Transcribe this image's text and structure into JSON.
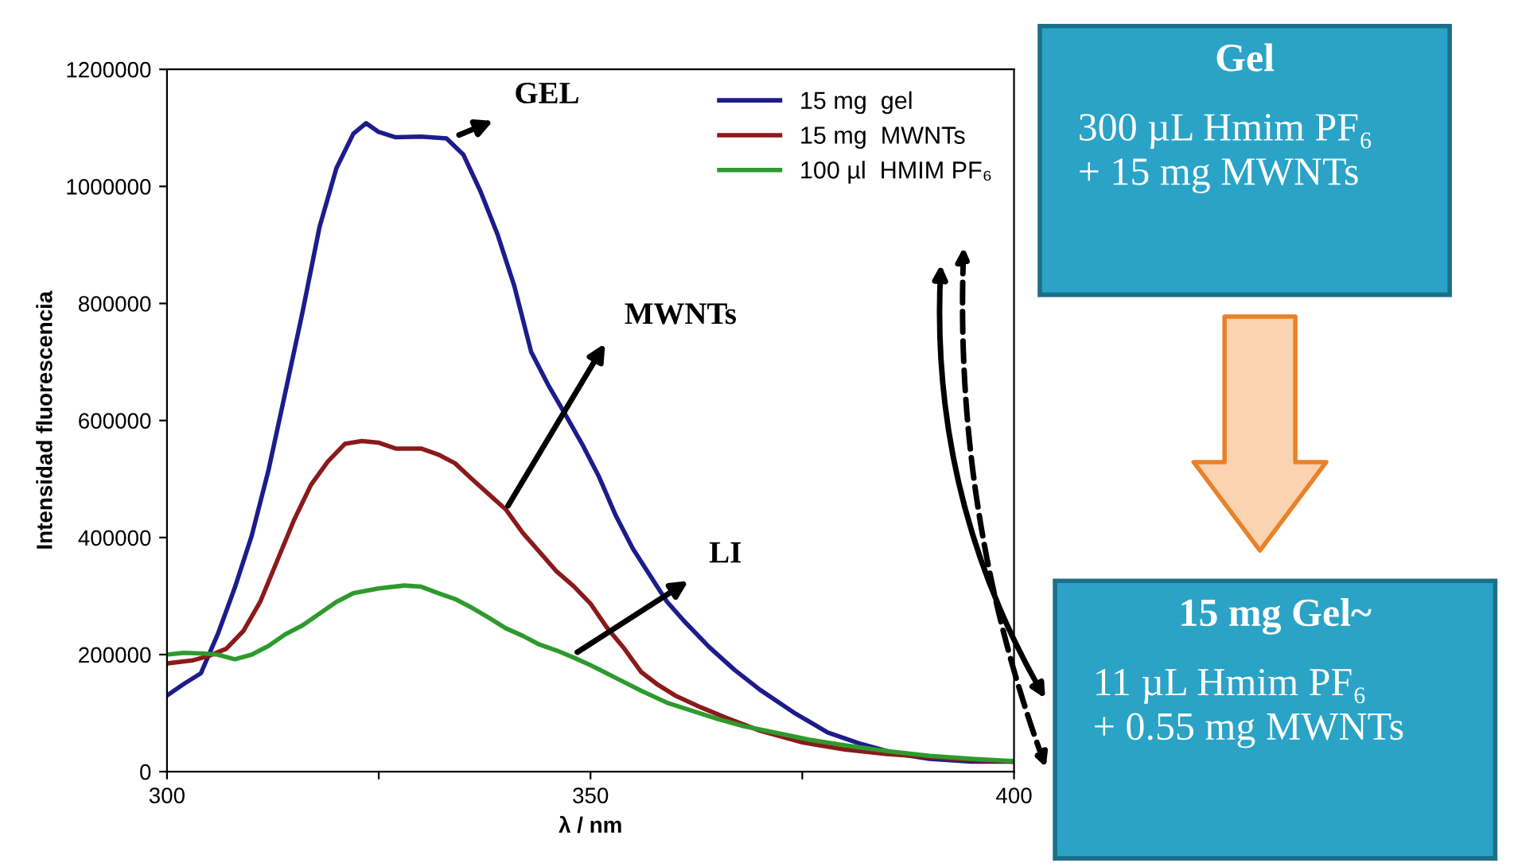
{
  "chart_data": {
    "type": "line",
    "xlabel": "λ / nm",
    "ylabel": "Intensidad fluorescencia",
    "xlim": [
      300,
      400
    ],
    "xticks": [
      300,
      {
        "value": 325,
        "label": null
      },
      350,
      {
        "value": 375,
        "label": null
      },
      400
    ],
    "ylim": [
      0,
      1200000
    ],
    "yticks": [
      0,
      200000,
      400000,
      600000,
      800000,
      1000000,
      1200000
    ],
    "grid": false,
    "legend": "top right",
    "marker": "none",
    "line_style": "solid",
    "series": [
      {
        "name": "15 mg  gel",
        "color": "#1c1c8c",
        "x": [
          300,
          302,
          304,
          306,
          308,
          310,
          312,
          314,
          316,
          318,
          320,
          322,
          323.5,
          325,
          327,
          330,
          333,
          335,
          337,
          339,
          341,
          343,
          345,
          347,
          349,
          351,
          353,
          355,
          357,
          359,
          361,
          364,
          367,
          370,
          374,
          378,
          382,
          386,
          390,
          395,
          400
        ],
        "values": [
          130000,
          150000,
          168000,
          235000,
          314000,
          403000,
          516000,
          650000,
          785000,
          930000,
          1031000,
          1090000,
          1108000,
          1093000,
          1084000,
          1085000,
          1082000,
          1054000,
          992000,
          919000,
          830000,
          717000,
          661000,
          611000,
          560000,
          504000,
          437000,
          381000,
          336000,
          291000,
          258000,
          213000,
          174000,
          140000,
          101000,
          67000,
          47000,
          31000,
          22000,
          17000,
          17000
        ]
      },
      {
        "name": "15 mg  MWNTs",
        "color": "#8b1a1a",
        "x": [
          300,
          303,
          305,
          307,
          309,
          311,
          313,
          315,
          317,
          319,
          321,
          323,
          325,
          327,
          330,
          332,
          334,
          336,
          338,
          340,
          342,
          344,
          346,
          348,
          350,
          352,
          354,
          356,
          358,
          360,
          363,
          366,
          370,
          375,
          380,
          385,
          390,
          395,
          400
        ],
        "values": [
          185000,
          190000,
          198000,
          210000,
          240000,
          290000,
          360000,
          430000,
          490000,
          530000,
          560000,
          565000,
          562000,
          552000,
          552000,
          542000,
          527000,
          500000,
          474000,
          448000,
          408000,
          375000,
          342000,
          317000,
          287000,
          245000,
          210000,
          170000,
          148000,
          130000,
          110000,
          92000,
          70000,
          50000,
          38000,
          30000,
          25000,
          20000,
          17000
        ]
      },
      {
        "name": "100 µl  HMIM PF₆",
        "color": "#2e9a2e",
        "x": [
          300,
          302,
          304,
          306,
          308,
          310,
          312,
          314,
          316,
          318,
          320,
          322,
          325,
          328,
          330,
          332,
          334,
          336,
          338,
          340,
          342,
          344,
          346,
          348,
          350,
          353,
          356,
          359,
          362,
          365,
          368,
          372,
          376,
          380,
          385,
          390,
          395,
          400
        ],
        "values": [
          200000,
          203000,
          202000,
          200000,
          192000,
          200000,
          215000,
          235000,
          250000,
          270000,
          290000,
          305000,
          313000,
          318000,
          316000,
          305000,
          295000,
          280000,
          263000,
          245000,
          232000,
          217000,
          207000,
          195000,
          182000,
          160000,
          138000,
          118000,
          104000,
          90000,
          78000,
          66000,
          54000,
          45000,
          35000,
          27000,
          22000,
          18000
        ]
      }
    ],
    "annotations": [
      {
        "text": "GEL",
        "x": 334,
        "y": 1085000
      },
      {
        "text": "MWNTs",
        "x": 340,
        "y": 448000
      },
      {
        "text": "LI",
        "x": 348,
        "y": 200000
      },
      "Gel\n300 µL Hmim PF₆\n+ 15 mg MWNTs",
      "15 mg Gel~\n11 µL Hmim PF₆\n+ 0.55 mg MWNTs"
    ]
  }
}
